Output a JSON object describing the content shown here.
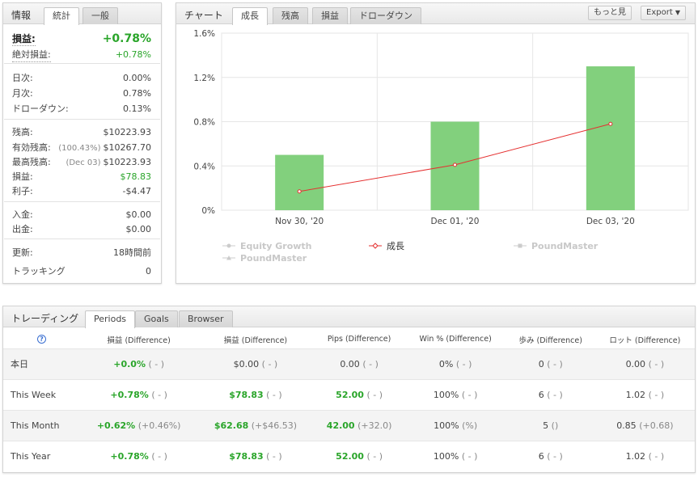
{
  "info": {
    "tabs": [
      "情報",
      "統計",
      "一般"
    ],
    "active_tab": 1,
    "rows": [
      {
        "k": "損益:",
        "v": "+0.78%",
        "big": true,
        "green": true
      },
      {
        "k": "絶対損益:",
        "v": "+0.78%",
        "green": true
      },
      {
        "k": "日次:",
        "v": "0.00%"
      },
      {
        "k": "月次:",
        "v": "0.78%"
      },
      {
        "k": "ドローダウン:",
        "v": "0.13%"
      },
      {
        "k": "残高:",
        "v": "$10223.93"
      },
      {
        "k": "有効残高:",
        "sub": "(100.43%)",
        "v": "$10267.70"
      },
      {
        "k": "最高残高:",
        "sub": "(Dec 03)",
        "v": "$10223.93"
      },
      {
        "k": "損益:",
        "v": "$78.83",
        "green": true
      },
      {
        "k": "利子:",
        "v": "-$4.47"
      },
      {
        "k": "入金:",
        "v": "$0.00"
      },
      {
        "k": "出金:",
        "v": "$0.00"
      },
      {
        "k": "更新:",
        "v": "18時間前"
      },
      {
        "k": "トラッキング",
        "v": "0"
      }
    ]
  },
  "chart_panel": {
    "title": "チャート",
    "tabs": [
      "成長",
      "残高",
      "損益",
      "ドローダウン"
    ],
    "active_tab": 0,
    "more_button": "もっと見",
    "export_button": "Export",
    "legend": [
      {
        "name": "Equity Growth",
        "color": "#cccccc",
        "active": false
      },
      {
        "name": "成長",
        "color": "#e53030",
        "active": true
      },
      {
        "name": "PoundMaster",
        "color": "#cccccc",
        "active": false
      },
      {
        "name": "PoundMaster",
        "color": "#cccccc",
        "active": false
      }
    ]
  },
  "chart_data": {
    "type": "bar",
    "categories": [
      "Nov 30, '20",
      "Dec 01, '20",
      "Dec 03, '20"
    ],
    "series": [
      {
        "name": "PoundMaster",
        "type": "bar",
        "values": [
          0.5,
          0.8,
          1.3
        ],
        "color": "#82d07d"
      },
      {
        "name": "成長",
        "type": "line",
        "values": [
          0.17,
          0.41,
          0.78
        ],
        "color": "#e53030"
      }
    ],
    "yticks": [
      "1.6%",
      "1.2%",
      "0.8%",
      "0.4%",
      "0%"
    ],
    "ylim": [
      0,
      1.6
    ],
    "grid": true
  },
  "trading": {
    "title": "トレーディング",
    "tabs": [
      "Periods",
      "Goals",
      "Browser"
    ],
    "active_tab": 0,
    "help_icon": "?",
    "columns": [
      "損益 (Difference)",
      "損益 (Difference)",
      "Pips (Difference)",
      "Win % (Difference)",
      "歩み (Difference)",
      "ロット (Difference)"
    ],
    "rows": [
      {
        "label": "本日",
        "cells": [
          [
            "+0.0%",
            "( - )",
            true
          ],
          [
            "$0.00",
            "( - )",
            false
          ],
          [
            "0.00",
            "( - )",
            false
          ],
          [
            "0%",
            "( - )",
            false
          ],
          [
            "0",
            "( - )",
            false
          ],
          [
            "0.00",
            "( - )",
            false
          ]
        ]
      },
      {
        "label": "This Week",
        "cells": [
          [
            "+0.78%",
            "( - )",
            true
          ],
          [
            "$78.83",
            "( - )",
            true
          ],
          [
            "52.00",
            "( - )",
            true
          ],
          [
            "100%",
            "( - )",
            false
          ],
          [
            "6",
            "( - )",
            false
          ],
          [
            "1.02",
            "( - )",
            false
          ]
        ]
      },
      {
        "label": "This Month",
        "cells": [
          [
            "+0.62%",
            "(+0.46%)",
            true
          ],
          [
            "$62.68",
            "(+$46.53)",
            true
          ],
          [
            "42.00",
            "(+32.0)",
            true
          ],
          [
            "100%",
            "(%)",
            false
          ],
          [
            "5",
            "()",
            false
          ],
          [
            "0.85",
            "(+0.68)",
            false
          ]
        ]
      },
      {
        "label": "This Year",
        "cells": [
          [
            "+0.78%",
            "( - )",
            true
          ],
          [
            "$78.83",
            "( - )",
            true
          ],
          [
            "52.00",
            "( - )",
            true
          ],
          [
            "100%",
            "( - )",
            false
          ],
          [
            "6",
            "( - )",
            false
          ],
          [
            "1.02",
            "( - )",
            false
          ]
        ]
      }
    ]
  }
}
